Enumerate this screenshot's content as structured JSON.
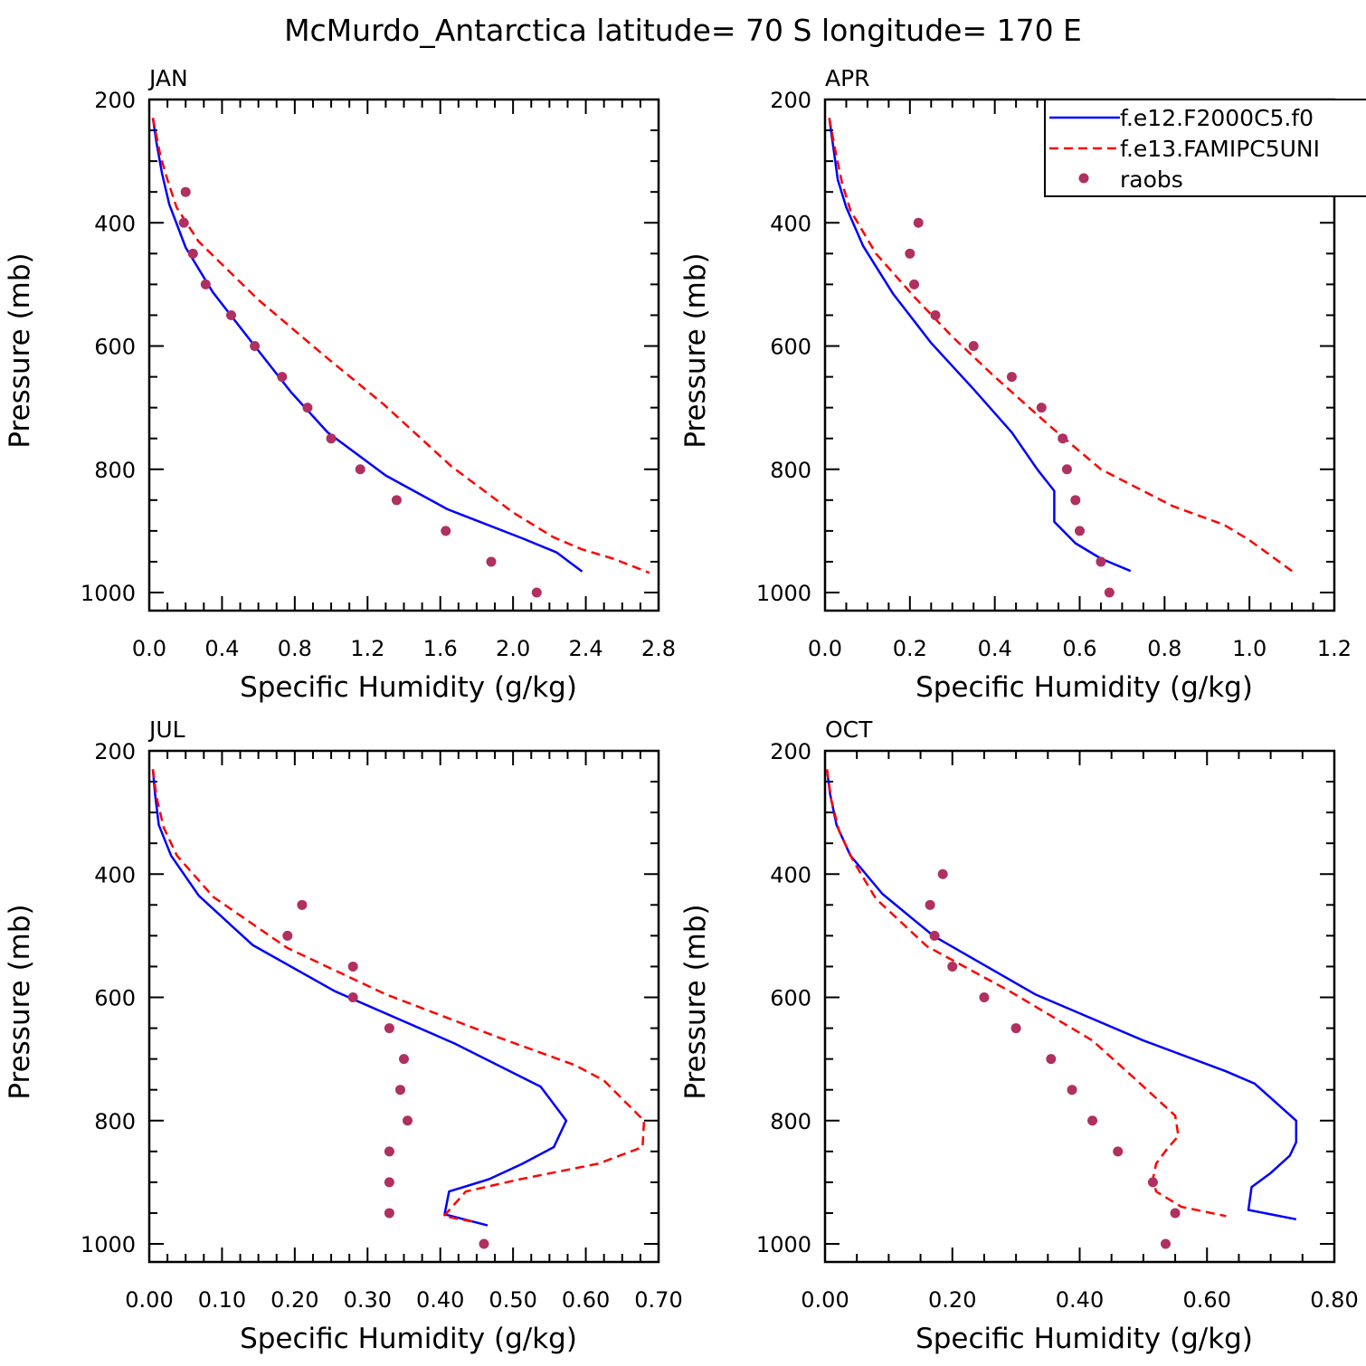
{
  "figure_title": "McMurdo_Antarctica  latitude= 70 S longitude= 170 E",
  "legend": {
    "entries": [
      {
        "label": "f.e12.F2000C5.f0",
        "color": "#0000ff",
        "style": "solid"
      },
      {
        "label": "f.e13.FAMIPC5UNI",
        "color": "#ff0000",
        "style": "dashed"
      },
      {
        "label": "raobs",
        "color": "#b03060",
        "style": "dot"
      }
    ]
  },
  "chart_data": [
    {
      "type": "line",
      "panel": "JAN",
      "xlabel": "Specific Humidity (g/kg)",
      "ylabel": "Pressure (mb)",
      "xlim": [
        0.0,
        2.8
      ],
      "ylim": [
        1025,
        200
      ],
      "x_ticks": [
        "0.0",
        "0.4",
        "0.8",
        "1.2",
        "1.6",
        "2.0",
        "2.4",
        "2.8"
      ],
      "y_ticks": [
        "200",
        "400",
        "600",
        "800",
        "1000"
      ],
      "series": [
        {
          "name": "f.e12.F2000C5.f0",
          "points": [
            [
              0.02,
              230
            ],
            [
              0.04,
              270
            ],
            [
              0.07,
              320
            ],
            [
              0.11,
              370
            ],
            [
              0.2,
              440
            ],
            [
              0.35,
              513
            ],
            [
              0.58,
              600
            ],
            [
              0.78,
              675
            ],
            [
              0.98,
              740
            ],
            [
              1.3,
              810
            ],
            [
              1.64,
              865
            ],
            [
              2.05,
              912
            ],
            [
              2.24,
              935
            ],
            [
              2.38,
              966
            ]
          ]
        },
        {
          "name": "f.e13.FAMIPC5UNI",
          "points": [
            [
              0.02,
              230
            ],
            [
              0.06,
              290
            ],
            [
              0.1,
              330
            ],
            [
              0.15,
              375
            ],
            [
              0.27,
              430
            ],
            [
              0.6,
              525
            ],
            [
              0.96,
              615
            ],
            [
              1.29,
              695
            ],
            [
              1.66,
              795
            ],
            [
              2.0,
              870
            ],
            [
              2.22,
              910
            ],
            [
              2.38,
              930
            ],
            [
              2.55,
              945
            ],
            [
              2.75,
              968
            ]
          ]
        },
        {
          "name": "raobs",
          "points": [
            [
              0.2,
              350
            ],
            [
              0.19,
              400
            ],
            [
              0.24,
              450
            ],
            [
              0.31,
              500
            ],
            [
              0.45,
              550
            ],
            [
              0.58,
              600
            ],
            [
              0.73,
              650
            ],
            [
              0.87,
              700
            ],
            [
              1.0,
              750
            ],
            [
              1.16,
              800
            ],
            [
              1.36,
              850
            ],
            [
              1.63,
              900
            ],
            [
              1.88,
              950
            ],
            [
              2.13,
              1000
            ]
          ]
        }
      ]
    },
    {
      "type": "line",
      "panel": "APR",
      "xlabel": "Specific Humidity (g/kg)",
      "ylabel": "Pressure (mb)",
      "xlim": [
        0.0,
        1.2
      ],
      "ylim": [
        1025,
        200
      ],
      "x_ticks": [
        "0.0",
        "0.2",
        "0.4",
        "0.6",
        "0.8",
        "1.0",
        "1.2"
      ],
      "y_ticks": [
        "200",
        "400",
        "600",
        "800",
        "1000"
      ],
      "series": [
        {
          "name": "f.e12.F2000C5.f0",
          "points": [
            [
              0.01,
              230
            ],
            [
              0.02,
              280
            ],
            [
              0.03,
              330
            ],
            [
              0.05,
              375
            ],
            [
              0.09,
              438
            ],
            [
              0.16,
              515
            ],
            [
              0.25,
              595
            ],
            [
              0.35,
              670
            ],
            [
              0.44,
              740
            ],
            [
              0.5,
              800
            ],
            [
              0.54,
              835
            ],
            [
              0.54,
              885
            ],
            [
              0.59,
              920
            ],
            [
              0.65,
              945
            ],
            [
              0.72,
              965
            ]
          ]
        },
        {
          "name": "f.e13.FAMIPC5UNI",
          "points": [
            [
              0.01,
              230
            ],
            [
              0.025,
              285
            ],
            [
              0.04,
              335
            ],
            [
              0.06,
              380
            ],
            [
              0.12,
              450
            ],
            [
              0.21,
              520
            ],
            [
              0.3,
              585
            ],
            [
              0.4,
              650
            ],
            [
              0.53,
              730
            ],
            [
              0.65,
              800
            ],
            [
              0.82,
              860
            ],
            [
              0.94,
              890
            ],
            [
              1.0,
              915
            ],
            [
              1.06,
              945
            ],
            [
              1.1,
              965
            ]
          ]
        },
        {
          "name": "raobs",
          "points": [
            [
              0.22,
              400
            ],
            [
              0.2,
              450
            ],
            [
              0.21,
              500
            ],
            [
              0.26,
              550
            ],
            [
              0.35,
              600
            ],
            [
              0.44,
              650
            ],
            [
              0.51,
              700
            ],
            [
              0.56,
              750
            ],
            [
              0.57,
              800
            ],
            [
              0.59,
              850
            ],
            [
              0.6,
              900
            ],
            [
              0.65,
              950
            ],
            [
              0.67,
              1000
            ]
          ]
        }
      ]
    },
    {
      "type": "line",
      "panel": "JUL",
      "xlabel": "Specific Humidity (g/kg)",
      "ylabel": "Pressure (mb)",
      "xlim": [
        0.0,
        0.7
      ],
      "ylim": [
        1025,
        200
      ],
      "x_ticks": [
        "0.00",
        "0.10",
        "0.20",
        "0.30",
        "0.40",
        "0.50",
        "0.60",
        "0.70"
      ],
      "y_ticks": [
        "200",
        "400",
        "600",
        "800",
        "1000"
      ],
      "series": [
        {
          "name": "f.e12.F2000C5.f0",
          "points": [
            [
              0.005,
              230
            ],
            [
              0.008,
              270
            ],
            [
              0.013,
              320
            ],
            [
              0.03,
              370
            ],
            [
              0.068,
              435
            ],
            [
              0.142,
              515
            ],
            [
              0.255,
              590
            ],
            [
              0.42,
              675
            ],
            [
              0.538,
              745
            ],
            [
              0.573,
              800
            ],
            [
              0.556,
              843
            ],
            [
              0.513,
              870
            ],
            [
              0.467,
              895
            ],
            [
              0.412,
              915
            ],
            [
              0.406,
              952
            ],
            [
              0.465,
              970
            ]
          ]
        },
        {
          "name": "f.e13.FAMIPC5UNI",
          "points": [
            [
              0.005,
              230
            ],
            [
              0.01,
              275
            ],
            [
              0.02,
              325
            ],
            [
              0.038,
              370
            ],
            [
              0.088,
              437
            ],
            [
              0.19,
              520
            ],
            [
              0.325,
              595
            ],
            [
              0.48,
              665
            ],
            [
              0.585,
              710
            ],
            [
              0.625,
              735
            ],
            [
              0.68,
              800
            ],
            [
              0.678,
              843
            ],
            [
              0.617,
              870
            ],
            [
              0.51,
              895
            ],
            [
              0.435,
              915
            ],
            [
              0.405,
              955
            ],
            [
              0.45,
              965
            ]
          ]
        },
        {
          "name": "raobs",
          "points": [
            [
              0.21,
              450
            ],
            [
              0.19,
              500
            ],
            [
              0.28,
              550
            ],
            [
              0.28,
              600
            ],
            [
              0.33,
              650
            ],
            [
              0.35,
              700
            ],
            [
              0.345,
              750
            ],
            [
              0.355,
              800
            ],
            [
              0.33,
              850
            ],
            [
              0.33,
              900
            ],
            [
              0.33,
              950
            ],
            [
              0.46,
              1000
            ]
          ]
        }
      ]
    },
    {
      "type": "line",
      "panel": "OCT",
      "xlabel": "Specific Humidity (g/kg)",
      "ylabel": "Pressure (mb)",
      "xlim": [
        0.0,
        0.8
      ],
      "ylim": [
        1025,
        200
      ],
      "x_ticks": [
        "0.00",
        "0.20",
        "0.40",
        "0.60",
        "0.80"
      ],
      "y_ticks": [
        "200",
        "400",
        "600",
        "800",
        "1000"
      ],
      "series": [
        {
          "name": "f.e12.F2000C5.f0",
          "points": [
            [
              0.003,
              230
            ],
            [
              0.008,
              270
            ],
            [
              0.018,
              320
            ],
            [
              0.04,
              370
            ],
            [
              0.09,
              432
            ],
            [
              0.17,
              500
            ],
            [
              0.33,
              595
            ],
            [
              0.5,
              670
            ],
            [
              0.63,
              720
            ],
            [
              0.675,
              740
            ],
            [
              0.74,
              800
            ],
            [
              0.74,
              835
            ],
            [
              0.73,
              857
            ],
            [
              0.7,
              885
            ],
            [
              0.67,
              908
            ],
            [
              0.665,
              945
            ],
            [
              0.74,
              960
            ]
          ]
        },
        {
          "name": "f.e13.FAMIPC5UNI",
          "points": [
            [
              0.003,
              230
            ],
            [
              0.01,
              280
            ],
            [
              0.022,
              330
            ],
            [
              0.045,
              380
            ],
            [
              0.08,
              440
            ],
            [
              0.16,
              517
            ],
            [
              0.29,
              590
            ],
            [
              0.42,
              670
            ],
            [
              0.49,
              735
            ],
            [
              0.55,
              792
            ],
            [
              0.555,
              825
            ],
            [
              0.538,
              845
            ],
            [
              0.52,
              870
            ],
            [
              0.515,
              895
            ],
            [
              0.52,
              915
            ],
            [
              0.56,
              940
            ],
            [
              0.63,
              955
            ]
          ]
        },
        {
          "name": "raobs",
          "points": [
            [
              0.185,
              400
            ],
            [
              0.165,
              450
            ],
            [
              0.172,
              500
            ],
            [
              0.2,
              550
            ],
            [
              0.25,
              600
            ],
            [
              0.3,
              650
            ],
            [
              0.355,
              700
            ],
            [
              0.388,
              750
            ],
            [
              0.42,
              800
            ],
            [
              0.46,
              850
            ],
            [
              0.515,
              900
            ],
            [
              0.55,
              950
            ],
            [
              0.535,
              1000
            ]
          ]
        }
      ]
    }
  ]
}
